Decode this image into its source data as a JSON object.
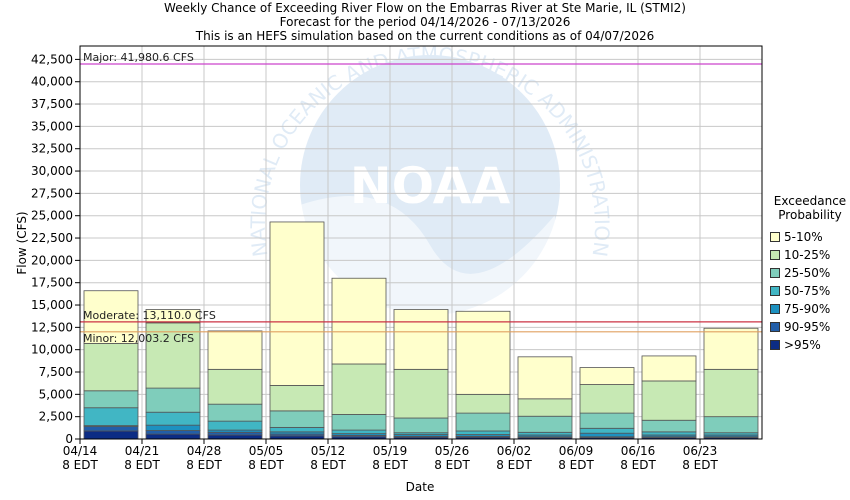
{
  "titles": {
    "line1": "Weekly Chance of Exceeding River Flow on the Embarras River at Ste Marie, IL (STMI2)",
    "line2": "Forecast for the period 04/14/2026 - 07/13/2026",
    "line3": "This is an HEFS simulation based on the current conditions as of 04/07/2026"
  },
  "chart_data": {
    "type": "bar",
    "stacked": true,
    "xlabel": "Date",
    "ylabel": "Flow (CFS)",
    "ylim": [
      0,
      44000
    ],
    "yticks": [
      "0",
      "2,500",
      "5,000",
      "7,500",
      "10,000",
      "12,500",
      "15,000",
      "17,500",
      "20,000",
      "22,500",
      "25,000",
      "27,500",
      "30,000",
      "32,500",
      "35,000",
      "37,500",
      "40,000",
      "42,500"
    ],
    "xticks": [
      {
        "date": "04/14",
        "time": "8 EDT"
      },
      {
        "date": "04/21",
        "time": "8 EDT"
      },
      {
        "date": "04/28",
        "time": "8 EDT"
      },
      {
        "date": "05/05",
        "time": "8 EDT"
      },
      {
        "date": "05/12",
        "time": "8 EDT"
      },
      {
        "date": "05/19",
        "time": "8 EDT"
      },
      {
        "date": "05/26",
        "time": "8 EDT"
      },
      {
        "date": "06/02",
        "time": "8 EDT"
      },
      {
        "date": "06/09",
        "time": "8 EDT"
      },
      {
        "date": "06/16",
        "time": "8 EDT"
      },
      {
        "date": "06/23",
        "time": "8 EDT"
      }
    ],
    "grid": true,
    "legend": {
      "title_line1": "Exceedance",
      "title_line2": "Probability",
      "position": "right",
      "items": [
        {
          "label": "5-10%",
          "color": "#ffffcc"
        },
        {
          "label": "10-25%",
          "color": "#c7e9b4"
        },
        {
          "label": "25-50%",
          "color": "#7fcdbb"
        },
        {
          "label": "50-75%",
          "color": "#41b6c4"
        },
        {
          "label": "75-90%",
          "color": "#1d91c0"
        },
        {
          "label": "90-95%",
          "color": "#225ea8"
        },
        {
          "label": ">95%",
          "color": "#0c2c84"
        }
      ]
    },
    "bands": [
      {
        "label": ">95%",
        "values": [
          900,
          550,
          450,
          350,
          250,
          200,
          200,
          150,
          150,
          150,
          150
        ]
      },
      {
        "label": "90-95%",
        "values": [
          1400,
          950,
          750,
          550,
          400,
          300,
          300,
          250,
          250,
          250,
          250
        ]
      },
      {
        "label": "75-90%",
        "values": [
          1500,
          1550,
          1000,
          800,
          600,
          500,
          500,
          450,
          650,
          450,
          450
        ]
      },
      {
        "label": "50-75%",
        "values": [
          3500,
          3000,
          2000,
          1300,
          1000,
          700,
          900,
          750,
          1200,
          800,
          700
        ]
      },
      {
        "label": "25-50%",
        "values": [
          5400,
          5700,
          3900,
          3150,
          2750,
          2350,
          2900,
          2550,
          2900,
          2100,
          2500
        ]
      },
      {
        "label": "10-25%",
        "values": [
          10700,
          13000,
          7800,
          6000,
          8400,
          7800,
          5000,
          4500,
          6100,
          6500,
          7800
        ]
      },
      {
        "label": "5-10%",
        "values": [
          16600,
          14500,
          12100,
          24300,
          18000,
          14500,
          14300,
          9200,
          8000,
          9300,
          12400
        ]
      }
    ],
    "thresholds": [
      {
        "label": "Major: 41,980.6 CFS",
        "value": 41980.6,
        "color": "#cc44cc"
      },
      {
        "label": "Moderate: 13,110.0 CFS",
        "value": 13110.0,
        "color": "#cc3344"
      },
      {
        "label": "Minor: 12,003.2 CFS",
        "value": 12003.2,
        "color": "#e0a060"
      }
    ]
  },
  "watermark": {
    "logo_text": "NOAA",
    "ring_text": "NATIONAL OCEANIC AND ATMOSPHERIC ADMINISTRATION"
  }
}
